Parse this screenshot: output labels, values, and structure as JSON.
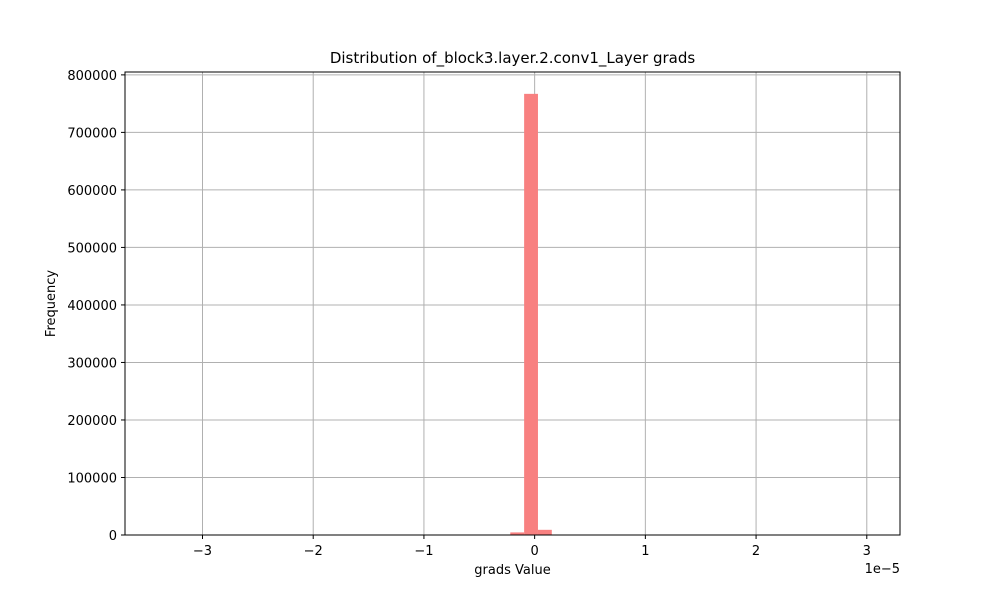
{
  "chart_data": {
    "type": "bar",
    "title": "Distribution of_block3.layer.2.conv1_Layer grads",
    "xlabel": "grads Value",
    "ylabel": "Frequency",
    "x_offset_label": "1e−5",
    "x_scale_multiplier": 1e-05,
    "xlim": [
      -3.7,
      3.3
    ],
    "ylim": [
      0,
      805000
    ],
    "grid": true,
    "bar_color": "#f88080",
    "x_ticks": [
      {
        "value": -3,
        "label": "−3"
      },
      {
        "value": -2,
        "label": "−2"
      },
      {
        "value": -1,
        "label": "−1"
      },
      {
        "value": 0,
        "label": "0"
      },
      {
        "value": 1,
        "label": "1"
      },
      {
        "value": 2,
        "label": "2"
      },
      {
        "value": 3,
        "label": "3"
      }
    ],
    "y_ticks": [
      {
        "value": 0,
        "label": "0"
      },
      {
        "value": 100000,
        "label": "100000"
      },
      {
        "value": 200000,
        "label": "200000"
      },
      {
        "value": 300000,
        "label": "300000"
      },
      {
        "value": 400000,
        "label": "400000"
      },
      {
        "value": 500000,
        "label": "500000"
      },
      {
        "value": 600000,
        "label": "600000"
      },
      {
        "value": 700000,
        "label": "700000"
      },
      {
        "value": 800000,
        "label": "800000"
      }
    ],
    "bins": [
      {
        "x0": -0.22,
        "x1": -0.095,
        "count": 4500
      },
      {
        "x0": -0.095,
        "x1": 0.03,
        "count": 767000
      },
      {
        "x0": 0.03,
        "x1": 0.155,
        "count": 9000
      }
    ]
  }
}
